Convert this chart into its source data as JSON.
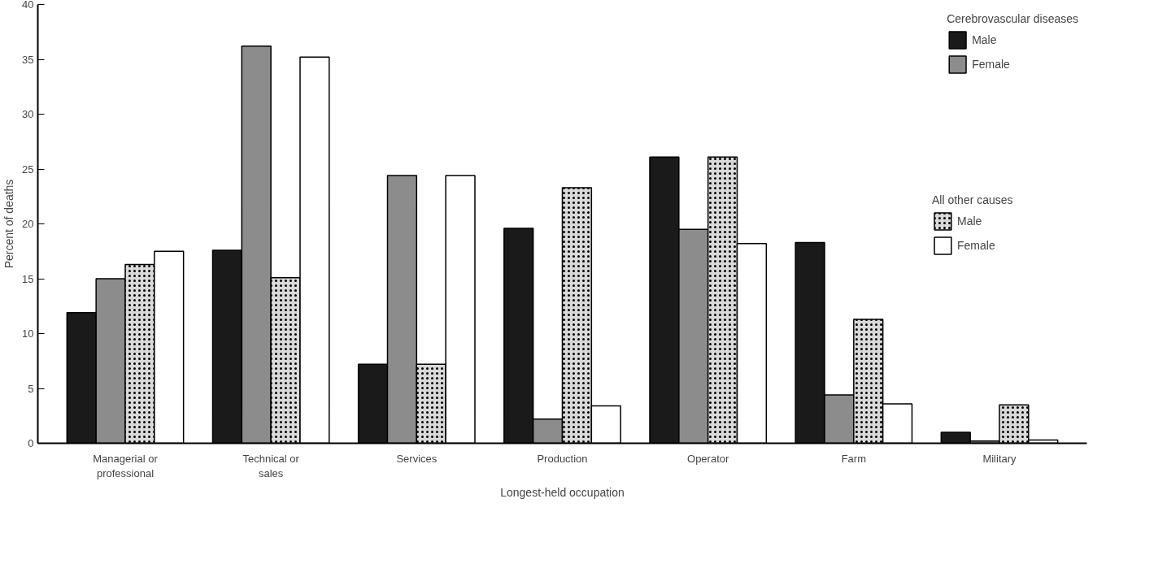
{
  "chart_data": {
    "type": "bar",
    "xlabel": "Longest-held occupation",
    "ylabel": "Percent of deaths",
    "categories": [
      "Managerial or\nprofessional",
      "Technical or\nsales",
      "Services",
      "Production",
      "Operator",
      "Farm",
      "Military"
    ],
    "legend_title": [
      "Cerebrovascular diseases",
      "All other causes"
    ],
    "series": [
      {
        "name": "Male",
        "color": "#1a1a1a",
        "values": [
          11.9,
          17.6,
          7.2,
          19.6,
          26.1,
          18.3,
          1.0
        ]
      },
      {
        "name": "Female",
        "color": "#8c8c8c",
        "values": [
          15.0,
          36.2,
          24.4,
          2.2,
          19.5,
          4.4,
          0.2
        ]
      },
      {
        "name": "Male",
        "color": "#d9d9d9",
        "values": [
          16.3,
          15.1,
          7.2,
          23.3,
          26.1,
          11.3,
          3.5
        ]
      },
      {
        "name": "Female",
        "color": "#ffffff",
        "values": [
          17.5,
          35.2,
          24.4,
          3.4,
          18.2,
          3.6,
          0.3
        ]
      }
    ],
    "ylim": [
      0,
      40
    ],
    "yticks": [
      0,
      5,
      10,
      15,
      20,
      25,
      30,
      35,
      40
    ],
    "grid": false,
    "legend": "top right"
  }
}
